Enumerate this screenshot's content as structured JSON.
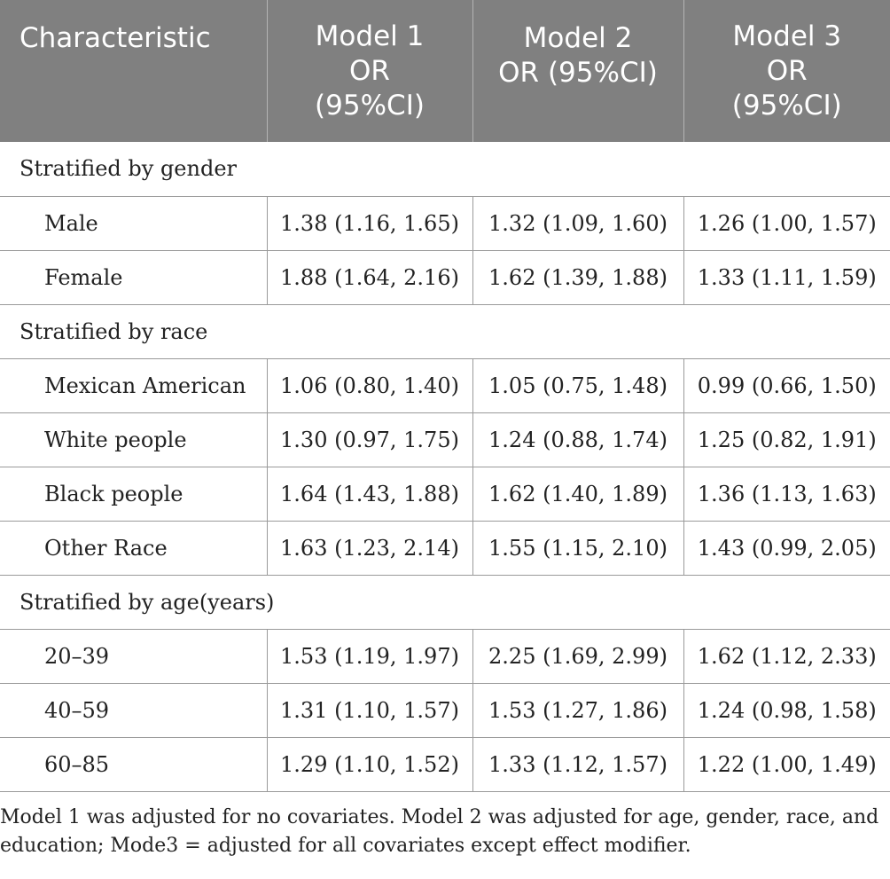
{
  "table": {
    "headers": [
      {
        "lines": [
          "Characteristic"
        ]
      },
      {
        "lines": [
          "Model 1",
          "OR",
          "(95%CI)"
        ]
      },
      {
        "lines": [
          "Model 2",
          "OR (95%CI)"
        ]
      },
      {
        "lines": [
          "Model 3",
          "OR",
          "(95%CI)"
        ]
      }
    ],
    "groups": [
      {
        "title": "Stratified by gender",
        "rows": [
          {
            "label": "Male",
            "m1": "1.38 (1.16, 1.65)",
            "m2": "1.32 (1.09, 1.60)",
            "m3": "1.26 (1.00, 1.57)"
          },
          {
            "label": "Female",
            "m1": "1.88 (1.64, 2.16)",
            "m2": "1.62 (1.39, 1.88)",
            "m3": "1.33 (1.11, 1.59)"
          }
        ]
      },
      {
        "title": "Stratified by race",
        "rows": [
          {
            "label": "Mexican American",
            "m1": "1.06 (0.80, 1.40)",
            "m2": "1.05 (0.75, 1.48)",
            "m3": "0.99 (0.66, 1.50)"
          },
          {
            "label": "White people",
            "m1": "1.30 (0.97, 1.75)",
            "m2": "1.24 (0.88, 1.74)",
            "m3": "1.25 (0.82, 1.91)"
          },
          {
            "label": "Black people",
            "m1": "1.64 (1.43, 1.88)",
            "m2": "1.62 (1.40, 1.89)",
            "m3": "1.36 (1.13, 1.63)"
          },
          {
            "label": "Other Race",
            "m1": "1.63 (1.23, 2.14)",
            "m2": "1.55 (1.15, 2.10)",
            "m3": "1.43 (0.99, 2.05)"
          }
        ]
      },
      {
        "title": "Stratified by age(years)",
        "rows": [
          {
            "label": "20–39",
            "m1": "1.53 (1.19, 1.97)",
            "m2": "2.25 (1.69, 2.99)",
            "m3": "1.62 (1.12, 2.33)"
          },
          {
            "label": "40–59",
            "m1": "1.31 (1.10, 1.57)",
            "m2": "1.53 (1.27, 1.86)",
            "m3": "1.24 (0.98, 1.58)"
          },
          {
            "label": "60–85",
            "m1": "1.29 (1.10, 1.52)",
            "m2": "1.33 (1.12, 1.57)",
            "m3": "1.22 (1.00, 1.49)"
          }
        ]
      }
    ]
  },
  "footnote": {
    "line1": "Model 1 was adjusted for no covariates. Model 2 was adjusted for age, gender, race, and",
    "line2": "education; Mode3 = adjusted for all covariates except effect modifier."
  }
}
